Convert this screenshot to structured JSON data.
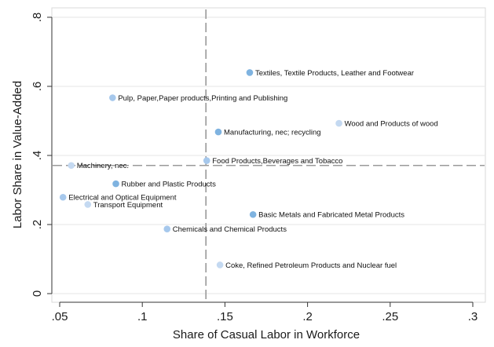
{
  "chart_data": {
    "type": "scatter",
    "xlabel": "Share of Casual Labor in Workforce",
    "ylabel": "Labor Share in Value-Added",
    "xlim": [
      0.05,
      0.3
    ],
    "ylim": [
      0,
      0.8
    ],
    "x_ticks": [
      0.05,
      0.1,
      0.15,
      0.2,
      0.25,
      0.3
    ],
    "x_tick_labels": [
      ".05",
      ".1",
      ".15",
      ".2",
      ".25",
      ".3"
    ],
    "y_ticks": [
      0,
      0.2,
      0.4,
      0.6,
      0.8
    ],
    "y_tick_labels": [
      "0",
      ".2",
      ".4",
      ".6",
      ".8"
    ],
    "grid": "horizontal",
    "reference_lines": {
      "x_mean": 0.1385,
      "y_mean": 0.371
    },
    "points": [
      {
        "label": "Textiles, Textile Products, Leather and Footwear",
        "x": 0.165,
        "y": 0.64
      },
      {
        "label": "Pulp, Paper,Paper products,Printing and Publishing",
        "x": 0.082,
        "y": 0.567
      },
      {
        "label": "Wood and Products of wood",
        "x": 0.219,
        "y": 0.493
      },
      {
        "label": "Manufacturing, nec; recycling",
        "x": 0.146,
        "y": 0.468
      },
      {
        "label": "Food Products,Beverages and Tobacco",
        "x": 0.139,
        "y": 0.385
      },
      {
        "label": "Machinery, nec.",
        "x": 0.057,
        "y": 0.371
      },
      {
        "label": "Rubber and Plastic Products",
        "x": 0.084,
        "y": 0.318
      },
      {
        "label": "Electrical and Optical Equipment",
        "x": 0.052,
        "y": 0.279
      },
      {
        "label": "Transport Equipment",
        "x": 0.067,
        "y": 0.258
      },
      {
        "label": "Basic Metals and Fabricated Metal Products",
        "x": 0.167,
        "y": 0.229
      },
      {
        "label": "Chemicals and  Chemical Products",
        "x": 0.115,
        "y": 0.187
      },
      {
        "label": "Coke, Refined Petroleum Products and Nuclear fuel",
        "x": 0.147,
        "y": 0.083
      }
    ],
    "point_colors": [
      "#7fb3e0",
      "#a6c8ec",
      "#c4d9f1"
    ]
  }
}
